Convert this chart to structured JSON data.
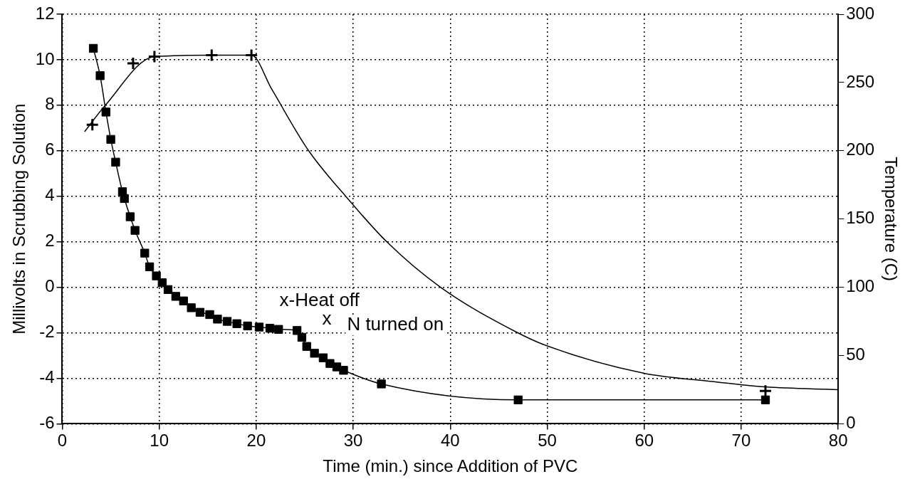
{
  "chart_data": {
    "type": "line",
    "xlabel": "Time (min.) since Addition of PVC",
    "ylabel": "Millivolts in Scrubbing Solution",
    "y2label": "Temperature (C)",
    "xlim": [
      0,
      80
    ],
    "xticks": [
      0,
      10,
      20,
      30,
      40,
      50,
      60,
      70,
      80
    ],
    "ylim": [
      -6,
      12
    ],
    "yticks": [
      -6,
      -4,
      -2,
      0,
      2,
      4,
      6,
      8,
      10,
      12
    ],
    "y2lim": [
      0,
      300
    ],
    "y2ticks": [
      0,
      50,
      100,
      150,
      200,
      250,
      300
    ],
    "grid": true,
    "legend": false,
    "series": [
      {
        "type": "line",
        "color": "#000000",
        "marker": "square",
        "x": [
          3.2,
          3.9,
          4.5,
          5.0,
          5.5,
          6.2,
          6.4,
          7.0,
          7.5,
          8.5,
          9.0,
          9.7,
          10.3,
          10.9,
          11.7,
          12.5,
          13.3,
          14.2,
          15.2,
          16.0,
          17.0,
          18.0,
          19.1,
          20.3,
          21.4,
          22.3,
          24.2,
          24.7,
          25.2,
          26.0,
          26.9,
          27.6,
          28.3,
          29.0,
          32.9,
          47.0,
          72.5
        ],
        "values": [
          10.5,
          9.3,
          7.7,
          6.5,
          5.5,
          4.2,
          3.9,
          3.1,
          2.5,
          1.5,
          0.9,
          0.5,
          0.2,
          -0.1,
          -0.4,
          -0.6,
          -0.9,
          -1.1,
          -1.2,
          -1.4,
          -1.5,
          -1.6,
          -1.7,
          -1.75,
          -1.8,
          -1.85,
          -1.9,
          -2.2,
          -2.6,
          -2.9,
          -3.1,
          -3.35,
          -3.5,
          -3.65,
          -4.25,
          -4.95,
          -4.95
        ]
      },
      {
        "type": "line",
        "color": "#000000",
        "marker": "none",
        "axis": "y2",
        "x": [
          2.3,
          4.4,
          9.5,
          15.4,
          19.5,
          21.6,
          25.4,
          29.3,
          33.5,
          39.0,
          46.6,
          50,
          60,
          67,
          72.5,
          80
        ],
        "values": [
          214,
          233,
          269,
          270,
          270,
          245,
          200,
          166,
          133,
          100,
          68,
          57,
          37,
          31,
          27,
          25
        ]
      },
      {
        "type": "scatter",
        "color": "#000000",
        "marker": "cross",
        "axis": "y2",
        "x": [
          3.1,
          7.3,
          9.5,
          15.4,
          19.5,
          72.5
        ],
        "values": [
          219,
          264,
          269,
          270,
          270,
          24
        ]
      }
    ],
    "annotations": [
      "x-Heat off",
      "x",
      "N turned on"
    ]
  }
}
